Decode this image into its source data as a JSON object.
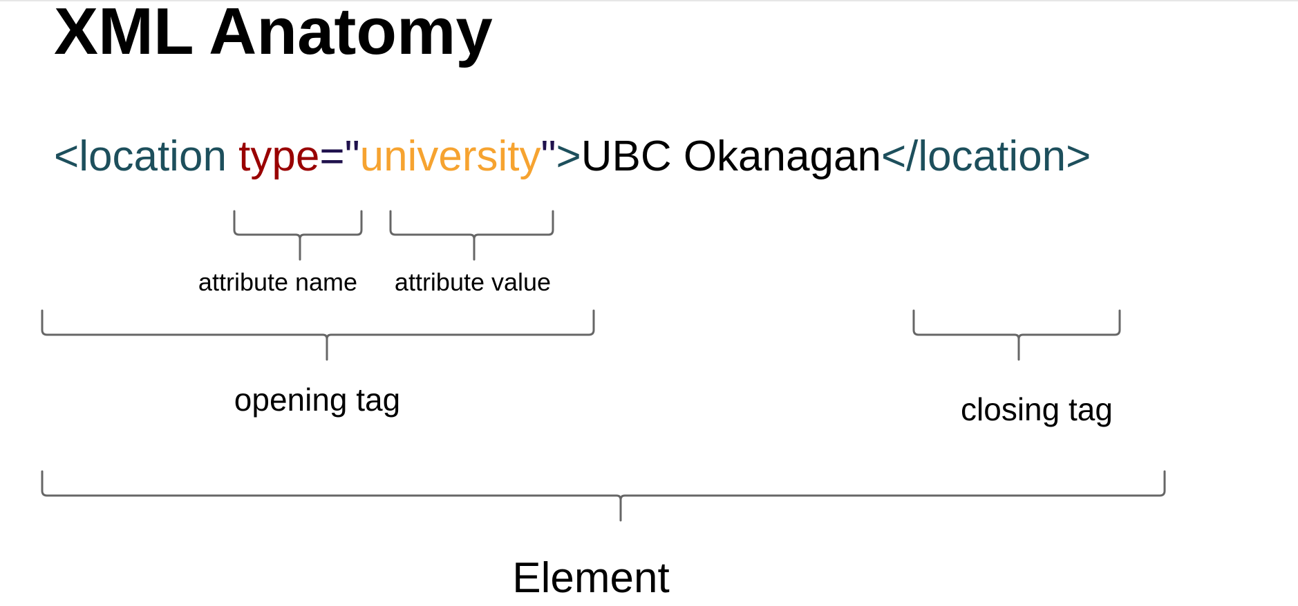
{
  "title": "XML Anatomy",
  "code": {
    "open_bracket": "<",
    "tag_name": "location",
    "space": " ",
    "attr_name": "type",
    "equals": "=",
    "open_quote": "\"",
    "attr_value": "university",
    "close_quote": "\"",
    "close_bracket": ">",
    "content": "UBC Okanagan",
    "closing_tag": "</location>"
  },
  "labels": {
    "attribute_name": "attribute name",
    "attribute_value": "attribute value",
    "opening_tag": "opening tag",
    "closing_tag": "closing tag",
    "element": "Element"
  },
  "colors": {
    "tag": "#1d4f5c",
    "attribute_name": "#990000",
    "punctuation": "#20124d",
    "attribute_value": "#f6a330",
    "content": "#000000",
    "brace": "#666666"
  }
}
